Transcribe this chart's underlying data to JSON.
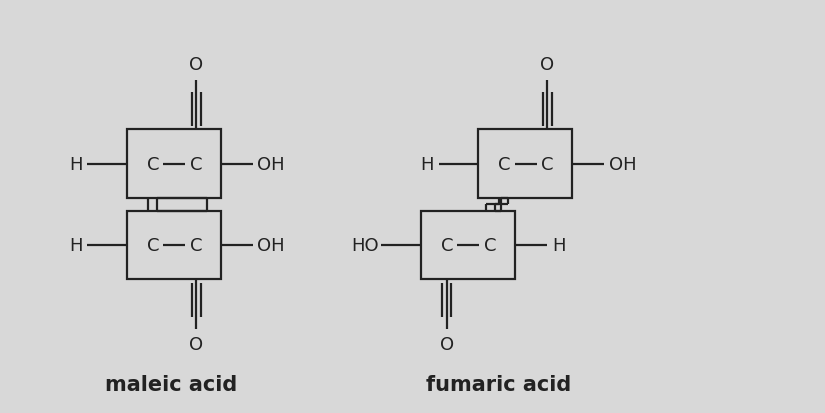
{
  "bg_color": "#d8d8d8",
  "line_color": "#222222",
  "lw": 1.6,
  "font_size": 13,
  "title_font_size": 15,
  "figw": 8.25,
  "figh": 4.14,
  "dpi": 100,
  "xlim": [
    0,
    10
  ],
  "ylim": [
    0,
    4.5
  ],
  "maleic_label": "maleic acid",
  "fumaric_label": "fumaric acid"
}
